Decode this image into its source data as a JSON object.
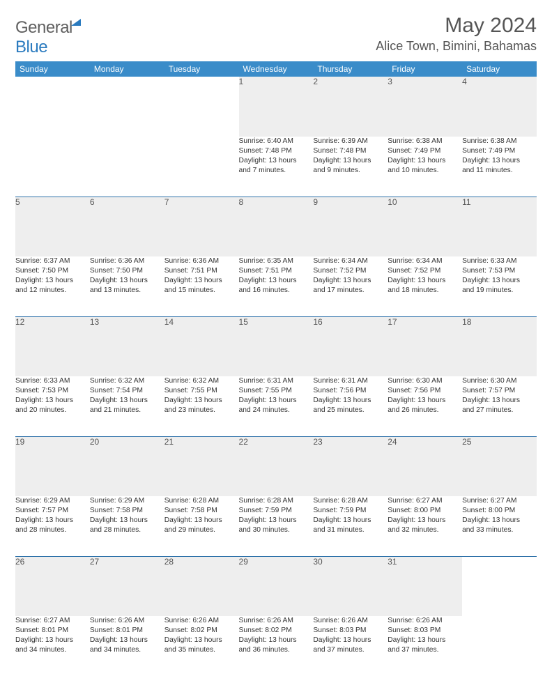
{
  "logo": {
    "part1": "General",
    "part2": "Blue"
  },
  "title": "May 2024",
  "location": "Alice Town, Bimini, Bahamas",
  "day_headers": [
    "Sunday",
    "Monday",
    "Tuesday",
    "Wednesday",
    "Thursday",
    "Friday",
    "Saturday"
  ],
  "colors": {
    "header_bg": "#3a8cc9",
    "daynum_bg": "#eeeeee",
    "rule": "#2b6fa8",
    "logo_blue": "#2b7bbf",
    "text": "#333333"
  },
  "weeks": [
    [
      null,
      null,
      null,
      {
        "n": "1",
        "sr": "Sunrise: 6:40 AM",
        "ss": "Sunset: 7:48 PM",
        "d1": "Daylight: 13 hours",
        "d2": "and 7 minutes."
      },
      {
        "n": "2",
        "sr": "Sunrise: 6:39 AM",
        "ss": "Sunset: 7:48 PM",
        "d1": "Daylight: 13 hours",
        "d2": "and 9 minutes."
      },
      {
        "n": "3",
        "sr": "Sunrise: 6:38 AM",
        "ss": "Sunset: 7:49 PM",
        "d1": "Daylight: 13 hours",
        "d2": "and 10 minutes."
      },
      {
        "n": "4",
        "sr": "Sunrise: 6:38 AM",
        "ss": "Sunset: 7:49 PM",
        "d1": "Daylight: 13 hours",
        "d2": "and 11 minutes."
      }
    ],
    [
      {
        "n": "5",
        "sr": "Sunrise: 6:37 AM",
        "ss": "Sunset: 7:50 PM",
        "d1": "Daylight: 13 hours",
        "d2": "and 12 minutes."
      },
      {
        "n": "6",
        "sr": "Sunrise: 6:36 AM",
        "ss": "Sunset: 7:50 PM",
        "d1": "Daylight: 13 hours",
        "d2": "and 13 minutes."
      },
      {
        "n": "7",
        "sr": "Sunrise: 6:36 AM",
        "ss": "Sunset: 7:51 PM",
        "d1": "Daylight: 13 hours",
        "d2": "and 15 minutes."
      },
      {
        "n": "8",
        "sr": "Sunrise: 6:35 AM",
        "ss": "Sunset: 7:51 PM",
        "d1": "Daylight: 13 hours",
        "d2": "and 16 minutes."
      },
      {
        "n": "9",
        "sr": "Sunrise: 6:34 AM",
        "ss": "Sunset: 7:52 PM",
        "d1": "Daylight: 13 hours",
        "d2": "and 17 minutes."
      },
      {
        "n": "10",
        "sr": "Sunrise: 6:34 AM",
        "ss": "Sunset: 7:52 PM",
        "d1": "Daylight: 13 hours",
        "d2": "and 18 minutes."
      },
      {
        "n": "11",
        "sr": "Sunrise: 6:33 AM",
        "ss": "Sunset: 7:53 PM",
        "d1": "Daylight: 13 hours",
        "d2": "and 19 minutes."
      }
    ],
    [
      {
        "n": "12",
        "sr": "Sunrise: 6:33 AM",
        "ss": "Sunset: 7:53 PM",
        "d1": "Daylight: 13 hours",
        "d2": "and 20 minutes."
      },
      {
        "n": "13",
        "sr": "Sunrise: 6:32 AM",
        "ss": "Sunset: 7:54 PM",
        "d1": "Daylight: 13 hours",
        "d2": "and 21 minutes."
      },
      {
        "n": "14",
        "sr": "Sunrise: 6:32 AM",
        "ss": "Sunset: 7:55 PM",
        "d1": "Daylight: 13 hours",
        "d2": "and 23 minutes."
      },
      {
        "n": "15",
        "sr": "Sunrise: 6:31 AM",
        "ss": "Sunset: 7:55 PM",
        "d1": "Daylight: 13 hours",
        "d2": "and 24 minutes."
      },
      {
        "n": "16",
        "sr": "Sunrise: 6:31 AM",
        "ss": "Sunset: 7:56 PM",
        "d1": "Daylight: 13 hours",
        "d2": "and 25 minutes."
      },
      {
        "n": "17",
        "sr": "Sunrise: 6:30 AM",
        "ss": "Sunset: 7:56 PM",
        "d1": "Daylight: 13 hours",
        "d2": "and 26 minutes."
      },
      {
        "n": "18",
        "sr": "Sunrise: 6:30 AM",
        "ss": "Sunset: 7:57 PM",
        "d1": "Daylight: 13 hours",
        "d2": "and 27 minutes."
      }
    ],
    [
      {
        "n": "19",
        "sr": "Sunrise: 6:29 AM",
        "ss": "Sunset: 7:57 PM",
        "d1": "Daylight: 13 hours",
        "d2": "and 28 minutes."
      },
      {
        "n": "20",
        "sr": "Sunrise: 6:29 AM",
        "ss": "Sunset: 7:58 PM",
        "d1": "Daylight: 13 hours",
        "d2": "and 28 minutes."
      },
      {
        "n": "21",
        "sr": "Sunrise: 6:28 AM",
        "ss": "Sunset: 7:58 PM",
        "d1": "Daylight: 13 hours",
        "d2": "and 29 minutes."
      },
      {
        "n": "22",
        "sr": "Sunrise: 6:28 AM",
        "ss": "Sunset: 7:59 PM",
        "d1": "Daylight: 13 hours",
        "d2": "and 30 minutes."
      },
      {
        "n": "23",
        "sr": "Sunrise: 6:28 AM",
        "ss": "Sunset: 7:59 PM",
        "d1": "Daylight: 13 hours",
        "d2": "and 31 minutes."
      },
      {
        "n": "24",
        "sr": "Sunrise: 6:27 AM",
        "ss": "Sunset: 8:00 PM",
        "d1": "Daylight: 13 hours",
        "d2": "and 32 minutes."
      },
      {
        "n": "25",
        "sr": "Sunrise: 6:27 AM",
        "ss": "Sunset: 8:00 PM",
        "d1": "Daylight: 13 hours",
        "d2": "and 33 minutes."
      }
    ],
    [
      {
        "n": "26",
        "sr": "Sunrise: 6:27 AM",
        "ss": "Sunset: 8:01 PM",
        "d1": "Daylight: 13 hours",
        "d2": "and 34 minutes."
      },
      {
        "n": "27",
        "sr": "Sunrise: 6:26 AM",
        "ss": "Sunset: 8:01 PM",
        "d1": "Daylight: 13 hours",
        "d2": "and 34 minutes."
      },
      {
        "n": "28",
        "sr": "Sunrise: 6:26 AM",
        "ss": "Sunset: 8:02 PM",
        "d1": "Daylight: 13 hours",
        "d2": "and 35 minutes."
      },
      {
        "n": "29",
        "sr": "Sunrise: 6:26 AM",
        "ss": "Sunset: 8:02 PM",
        "d1": "Daylight: 13 hours",
        "d2": "and 36 minutes."
      },
      {
        "n": "30",
        "sr": "Sunrise: 6:26 AM",
        "ss": "Sunset: 8:03 PM",
        "d1": "Daylight: 13 hours",
        "d2": "and 37 minutes."
      },
      {
        "n": "31",
        "sr": "Sunrise: 6:26 AM",
        "ss": "Sunset: 8:03 PM",
        "d1": "Daylight: 13 hours",
        "d2": "and 37 minutes."
      },
      null
    ]
  ]
}
